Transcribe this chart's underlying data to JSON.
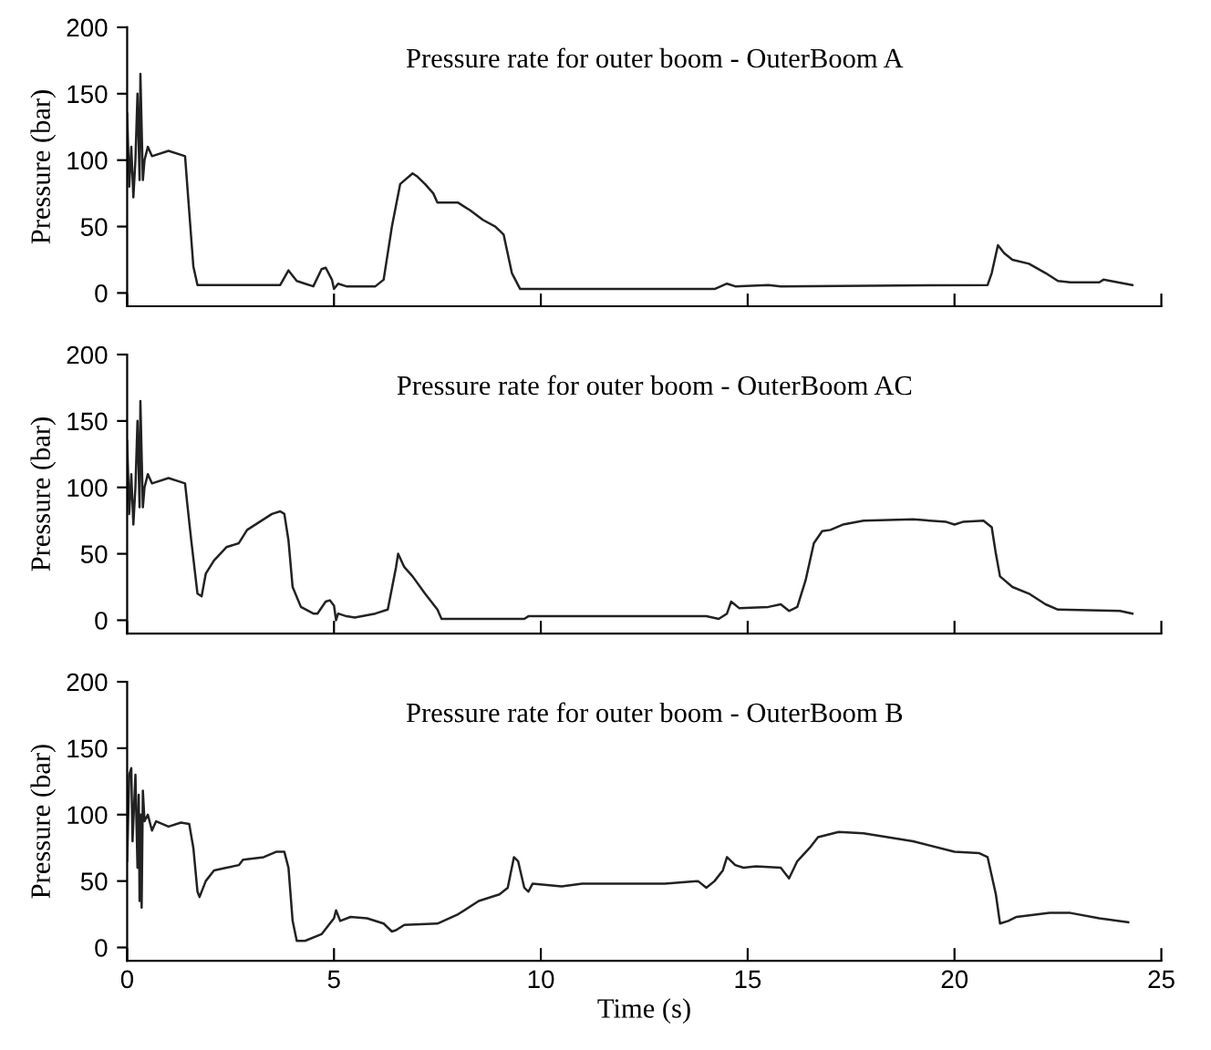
{
  "chart_data": [
    {
      "type": "line",
      "title": "Pressure rate for outer boom - OuterBoom A",
      "ylabel": "Pressure (bar)",
      "color": "#222222",
      "x": [
        0,
        0.05,
        0.1,
        0.15,
        0.2,
        0.25,
        0.3,
        0.32,
        0.38,
        0.42,
        0.5,
        0.6,
        1.0,
        1.3,
        1.4,
        1.6,
        1.7,
        3.7,
        3.9,
        4.1,
        4.3,
        4.5,
        4.7,
        4.8,
        4.95,
        5.0,
        5.1,
        5.3,
        6.0,
        6.2,
        6.4,
        6.6,
        6.9,
        7.0,
        7.2,
        7.4,
        7.5,
        8.0,
        8.3,
        8.6,
        8.9,
        9.1,
        9.3,
        9.5,
        10,
        14.2,
        14.5,
        14.7,
        15.5,
        15.8,
        20.8,
        20.9,
        21.05,
        21.2,
        21.4,
        21.8,
        22.2,
        22.5,
        22.8,
        23.5,
        23.6,
        24.3
      ],
      "values": [
        135,
        80,
        110,
        72,
        100,
        150,
        85,
        165,
        85,
        100,
        110,
        103,
        107,
        104,
        103,
        20,
        6,
        6,
        17,
        9,
        7,
        5,
        18,
        19,
        10,
        3,
        7,
        5,
        5,
        10,
        50,
        82,
        90,
        88,
        82,
        75,
        68,
        68,
        62,
        55,
        50,
        44,
        15,
        3,
        3,
        3,
        7,
        5,
        6,
        5,
        6,
        15,
        36,
        30,
        25,
        22,
        15,
        9,
        8,
        8,
        10,
        6
      ],
      "xlim": [
        0,
        25
      ],
      "ylim": [
        -10,
        200
      ],
      "xticks": [
        0,
        5,
        10,
        15,
        20,
        25
      ],
      "yticks": [
        0,
        50,
        100,
        150,
        200
      ],
      "tick_labels": "y"
    },
    {
      "type": "line",
      "title": "Pressure rate for outer boom - OuterBoom AC",
      "ylabel": "Pressure (bar)",
      "color": "#222222",
      "x": [
        0,
        0.05,
        0.1,
        0.15,
        0.2,
        0.25,
        0.3,
        0.32,
        0.38,
        0.42,
        0.5,
        0.6,
        1.0,
        1.3,
        1.4,
        1.55,
        1.7,
        1.8,
        1.9,
        2.1,
        2.4,
        2.7,
        2.9,
        3.2,
        3.5,
        3.7,
        3.8,
        3.9,
        4.0,
        4.2,
        4.5,
        4.6,
        4.8,
        4.9,
        5.0,
        5.05,
        5.1,
        5.3,
        5.5,
        6.0,
        6.3,
        6.5,
        6.55,
        6.7,
        6.9,
        7.2,
        7.5,
        7.6,
        9.6,
        9.7,
        14.0,
        14.3,
        14.5,
        14.6,
        14.8,
        15.5,
        15.8,
        16.0,
        16.2,
        16.4,
        16.6,
        16.8,
        17.0,
        17.3,
        17.8,
        19.0,
        19.8,
        20.0,
        20.2,
        20.7,
        20.9,
        21.0,
        21.1,
        21.4,
        21.8,
        22.2,
        22.5,
        24.0,
        24.3
      ],
      "values": [
        135,
        80,
        110,
        72,
        100,
        150,
        85,
        165,
        85,
        100,
        110,
        103,
        107,
        104,
        103,
        60,
        20,
        18,
        35,
        45,
        55,
        58,
        68,
        74,
        80,
        82,
        80,
        60,
        25,
        10,
        5,
        5,
        14,
        15,
        11,
        0,
        5,
        3,
        2,
        5,
        8,
        40,
        50,
        40,
        33,
        20,
        8,
        1,
        1,
        3,
        3,
        1,
        5,
        14,
        9,
        10,
        12,
        7,
        10,
        30,
        58,
        67,
        68,
        72,
        75,
        76,
        74,
        72,
        74,
        75,
        70,
        50,
        33,
        25,
        20,
        12,
        8,
        7,
        5
      ],
      "xlim": [
        0,
        25
      ],
      "ylim": [
        -10,
        200
      ],
      "xticks": [
        0,
        5,
        10,
        15,
        20,
        25
      ],
      "yticks": [
        0,
        50,
        100,
        150,
        200
      ],
      "tick_labels": "y"
    },
    {
      "type": "line",
      "title": "Pressure rate for outer boom - OuterBoom B",
      "ylabel": "Pressure (bar)",
      "xlabel": "Time (s)",
      "color": "#222222",
      "x": [
        0,
        0.05,
        0.1,
        0.13,
        0.2,
        0.25,
        0.28,
        0.3,
        0.33,
        0.35,
        0.38,
        0.42,
        0.5,
        0.6,
        0.7,
        1.0,
        1.3,
        1.5,
        1.6,
        1.7,
        1.75,
        1.9,
        2.1,
        2.4,
        2.7,
        2.8,
        3.3,
        3.6,
        3.8,
        3.9,
        4.0,
        4.1,
        4.3,
        4.7,
        4.9,
        5.0,
        5.05,
        5.15,
        5.4,
        5.8,
        6.2,
        6.4,
        6.5,
        6.7,
        7.5,
        8.0,
        8.5,
        9.0,
        9.2,
        9.35,
        9.45,
        9.6,
        9.7,
        9.8,
        10.5,
        11,
        13,
        13.8,
        14.0,
        14.2,
        14.4,
        14.5,
        14.7,
        14.9,
        15.2,
        15.8,
        16.0,
        16.2,
        16.5,
        16.7,
        17.2,
        17.8,
        19,
        20.0,
        20.6,
        20.8,
        21.0,
        21.1,
        21.3,
        21.5,
        22.3,
        22.8,
        23.5,
        24.2
      ],
      "values": [
        65,
        130,
        135,
        80,
        130,
        60,
        115,
        35,
        100,
        30,
        118,
        95,
        100,
        88,
        95,
        91,
        94,
        93,
        75,
        42,
        38,
        50,
        58,
        60,
        62,
        66,
        68,
        72,
        72,
        60,
        20,
        5,
        5,
        10,
        18,
        22,
        28,
        20,
        23,
        22,
        18,
        12,
        13,
        17,
        18,
        25,
        35,
        40,
        45,
        68,
        65,
        45,
        42,
        48,
        46,
        48,
        48,
        50,
        45,
        50,
        58,
        68,
        62,
        60,
        61,
        60,
        52,
        65,
        75,
        83,
        87,
        86,
        80,
        72,
        71,
        68,
        40,
        18,
        20,
        23,
        26,
        26,
        22,
        19
      ],
      "xlim": [
        0,
        25
      ],
      "ylim": [
        -10,
        200
      ],
      "xticks": [
        0,
        5,
        10,
        15,
        20,
        25
      ],
      "yticks": [
        0,
        50,
        100,
        150,
        200
      ]
    }
  ]
}
